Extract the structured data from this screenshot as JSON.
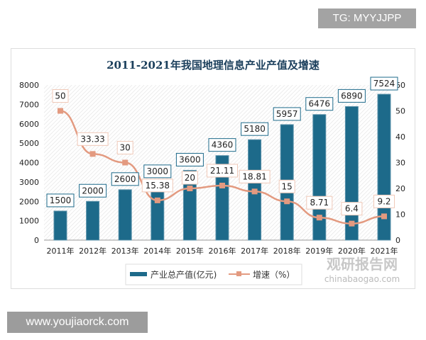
{
  "watermark_top": "TG: MYYJJPP",
  "watermark_bottom": "www.youjiaorck.com",
  "watermark_logo": "观研报告网 chinabaogao.com",
  "chart_data": {
    "type": "bar+line",
    "title": "2011-2021年我国地理信息产业产值及增速",
    "categories": [
      "2011年",
      "2012年",
      "2013年",
      "2014年",
      "2015年",
      "2016年",
      "2017年",
      "2018年",
      "2019年",
      "2020年",
      "2021年"
    ],
    "series": [
      {
        "name": "产业总产值(亿元)",
        "type": "bar",
        "axis": "left",
        "color": "#1d6a8a",
        "values": [
          1500,
          2000,
          2600,
          3000,
          3600,
          4360,
          5180,
          5957,
          6476,
          6890,
          7524
        ]
      },
      {
        "name": "增速（%）",
        "type": "line",
        "axis": "right",
        "color": "#e39a80",
        "values": [
          50,
          33.33,
          30,
          15.38,
          20,
          21.11,
          18.81,
          15,
          8.71,
          6.4,
          9.2
        ]
      }
    ],
    "bar_labels": [
      "1500",
      "2000",
      "2600",
      "3000",
      "3600",
      "4360",
      "5180",
      "5957",
      "6476",
      "6890",
      "7524"
    ],
    "line_labels": [
      "50",
      "33.33",
      "30",
      "15.38",
      "20",
      "21.11",
      "18.81",
      "15",
      "8.71",
      "6.4",
      "9.2"
    ],
    "left_axis": {
      "range": [
        0,
        8000
      ],
      "ticks": [
        "0",
        "1000",
        "2000",
        "3000",
        "4000",
        "5000",
        "6000",
        "7000",
        "8000"
      ]
    },
    "right_axis": {
      "range": [
        0,
        60
      ],
      "ticks": [
        "0",
        "10",
        "20",
        "30",
        "40",
        "50",
        "60"
      ]
    },
    "legend_placement": "bottom",
    "grid": false
  }
}
